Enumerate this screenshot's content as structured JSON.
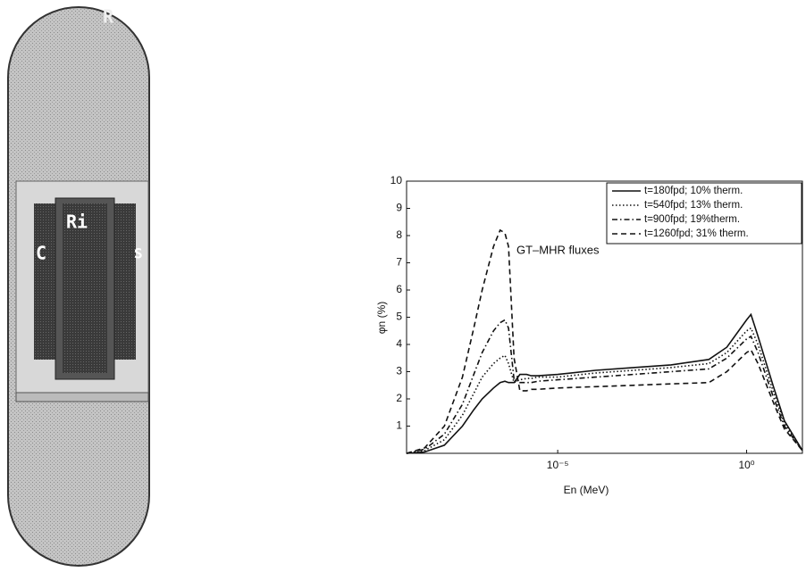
{
  "diagram": {
    "labels": [
      "R",
      "Ri",
      "C",
      "S"
    ]
  },
  "chart_data": {
    "type": "line",
    "annotation": "GT–MHR fluxes",
    "xlabel": "En (MeV)",
    "ylabel": "φn (%)",
    "xscale": "log",
    "xlim": [
      1e-09,
      30
    ],
    "ylim": [
      0,
      10
    ],
    "xticks": [
      {
        "value": 1e-05,
        "label": "10⁻⁵"
      },
      {
        "value": 1,
        "label": "10⁰"
      }
    ],
    "yticks": [
      1,
      2,
      3,
      4,
      5,
      6,
      7,
      8,
      9,
      10
    ],
    "grid": false,
    "legend": "upper right",
    "x": [
      1e-09,
      3e-09,
      1e-08,
      3e-08,
      6e-08,
      1e-07,
      2e-07,
      3e-07,
      4e-07,
      5e-07,
      7e-07,
      1e-06,
      1.5e-06,
      2e-06,
      3e-06,
      1e-05,
      0.0001,
      0.001,
      0.01,
      0.1,
      0.3,
      1,
      1.3,
      2,
      5,
      10,
      30
    ],
    "series": [
      {
        "name": "t=180fpd; 10% therm.",
        "color": "#111111",
        "linestyle": "solid",
        "values": [
          0,
          0.05,
          0.3,
          1.0,
          1.6,
          2.0,
          2.4,
          2.6,
          2.65,
          2.6,
          2.6,
          2.9,
          2.9,
          2.85,
          2.85,
          2.9,
          3.05,
          3.15,
          3.25,
          3.45,
          3.9,
          4.9,
          5.1,
          4.3,
          2.5,
          1.2,
          0.1
        ]
      },
      {
        "name": "t=540fpd; 13% therm.",
        "color": "#111111",
        "linestyle": "dotted",
        "values": [
          0,
          0.1,
          0.5,
          1.4,
          2.2,
          2.8,
          3.3,
          3.5,
          3.6,
          3.3,
          2.6,
          2.7,
          2.75,
          2.75,
          2.8,
          2.8,
          2.95,
          3.05,
          3.15,
          3.3,
          3.7,
          4.5,
          4.6,
          4.0,
          2.3,
          1.1,
          0.1
        ]
      },
      {
        "name": "t=900fpd; 19%therm.",
        "color": "#111111",
        "linestyle": "dashdot",
        "values": [
          0,
          0.15,
          0.7,
          1.8,
          2.9,
          3.7,
          4.5,
          4.8,
          4.9,
          4.6,
          2.7,
          2.6,
          2.6,
          2.6,
          2.65,
          2.7,
          2.8,
          2.9,
          3.0,
          3.1,
          3.5,
          4.2,
          4.3,
          3.7,
          2.1,
          1.0,
          0.1
        ]
      },
      {
        "name": "t=1260fpd; 31% therm.",
        "color": "#111111",
        "linestyle": "dashed",
        "values": [
          0,
          0.2,
          1.0,
          2.8,
          4.6,
          6.0,
          7.6,
          8.2,
          8.1,
          7.6,
          3.5,
          2.3,
          2.3,
          2.35,
          2.35,
          2.4,
          2.45,
          2.5,
          2.55,
          2.6,
          3.0,
          3.7,
          3.8,
          3.3,
          1.9,
          0.9,
          0.1
        ]
      }
    ]
  }
}
